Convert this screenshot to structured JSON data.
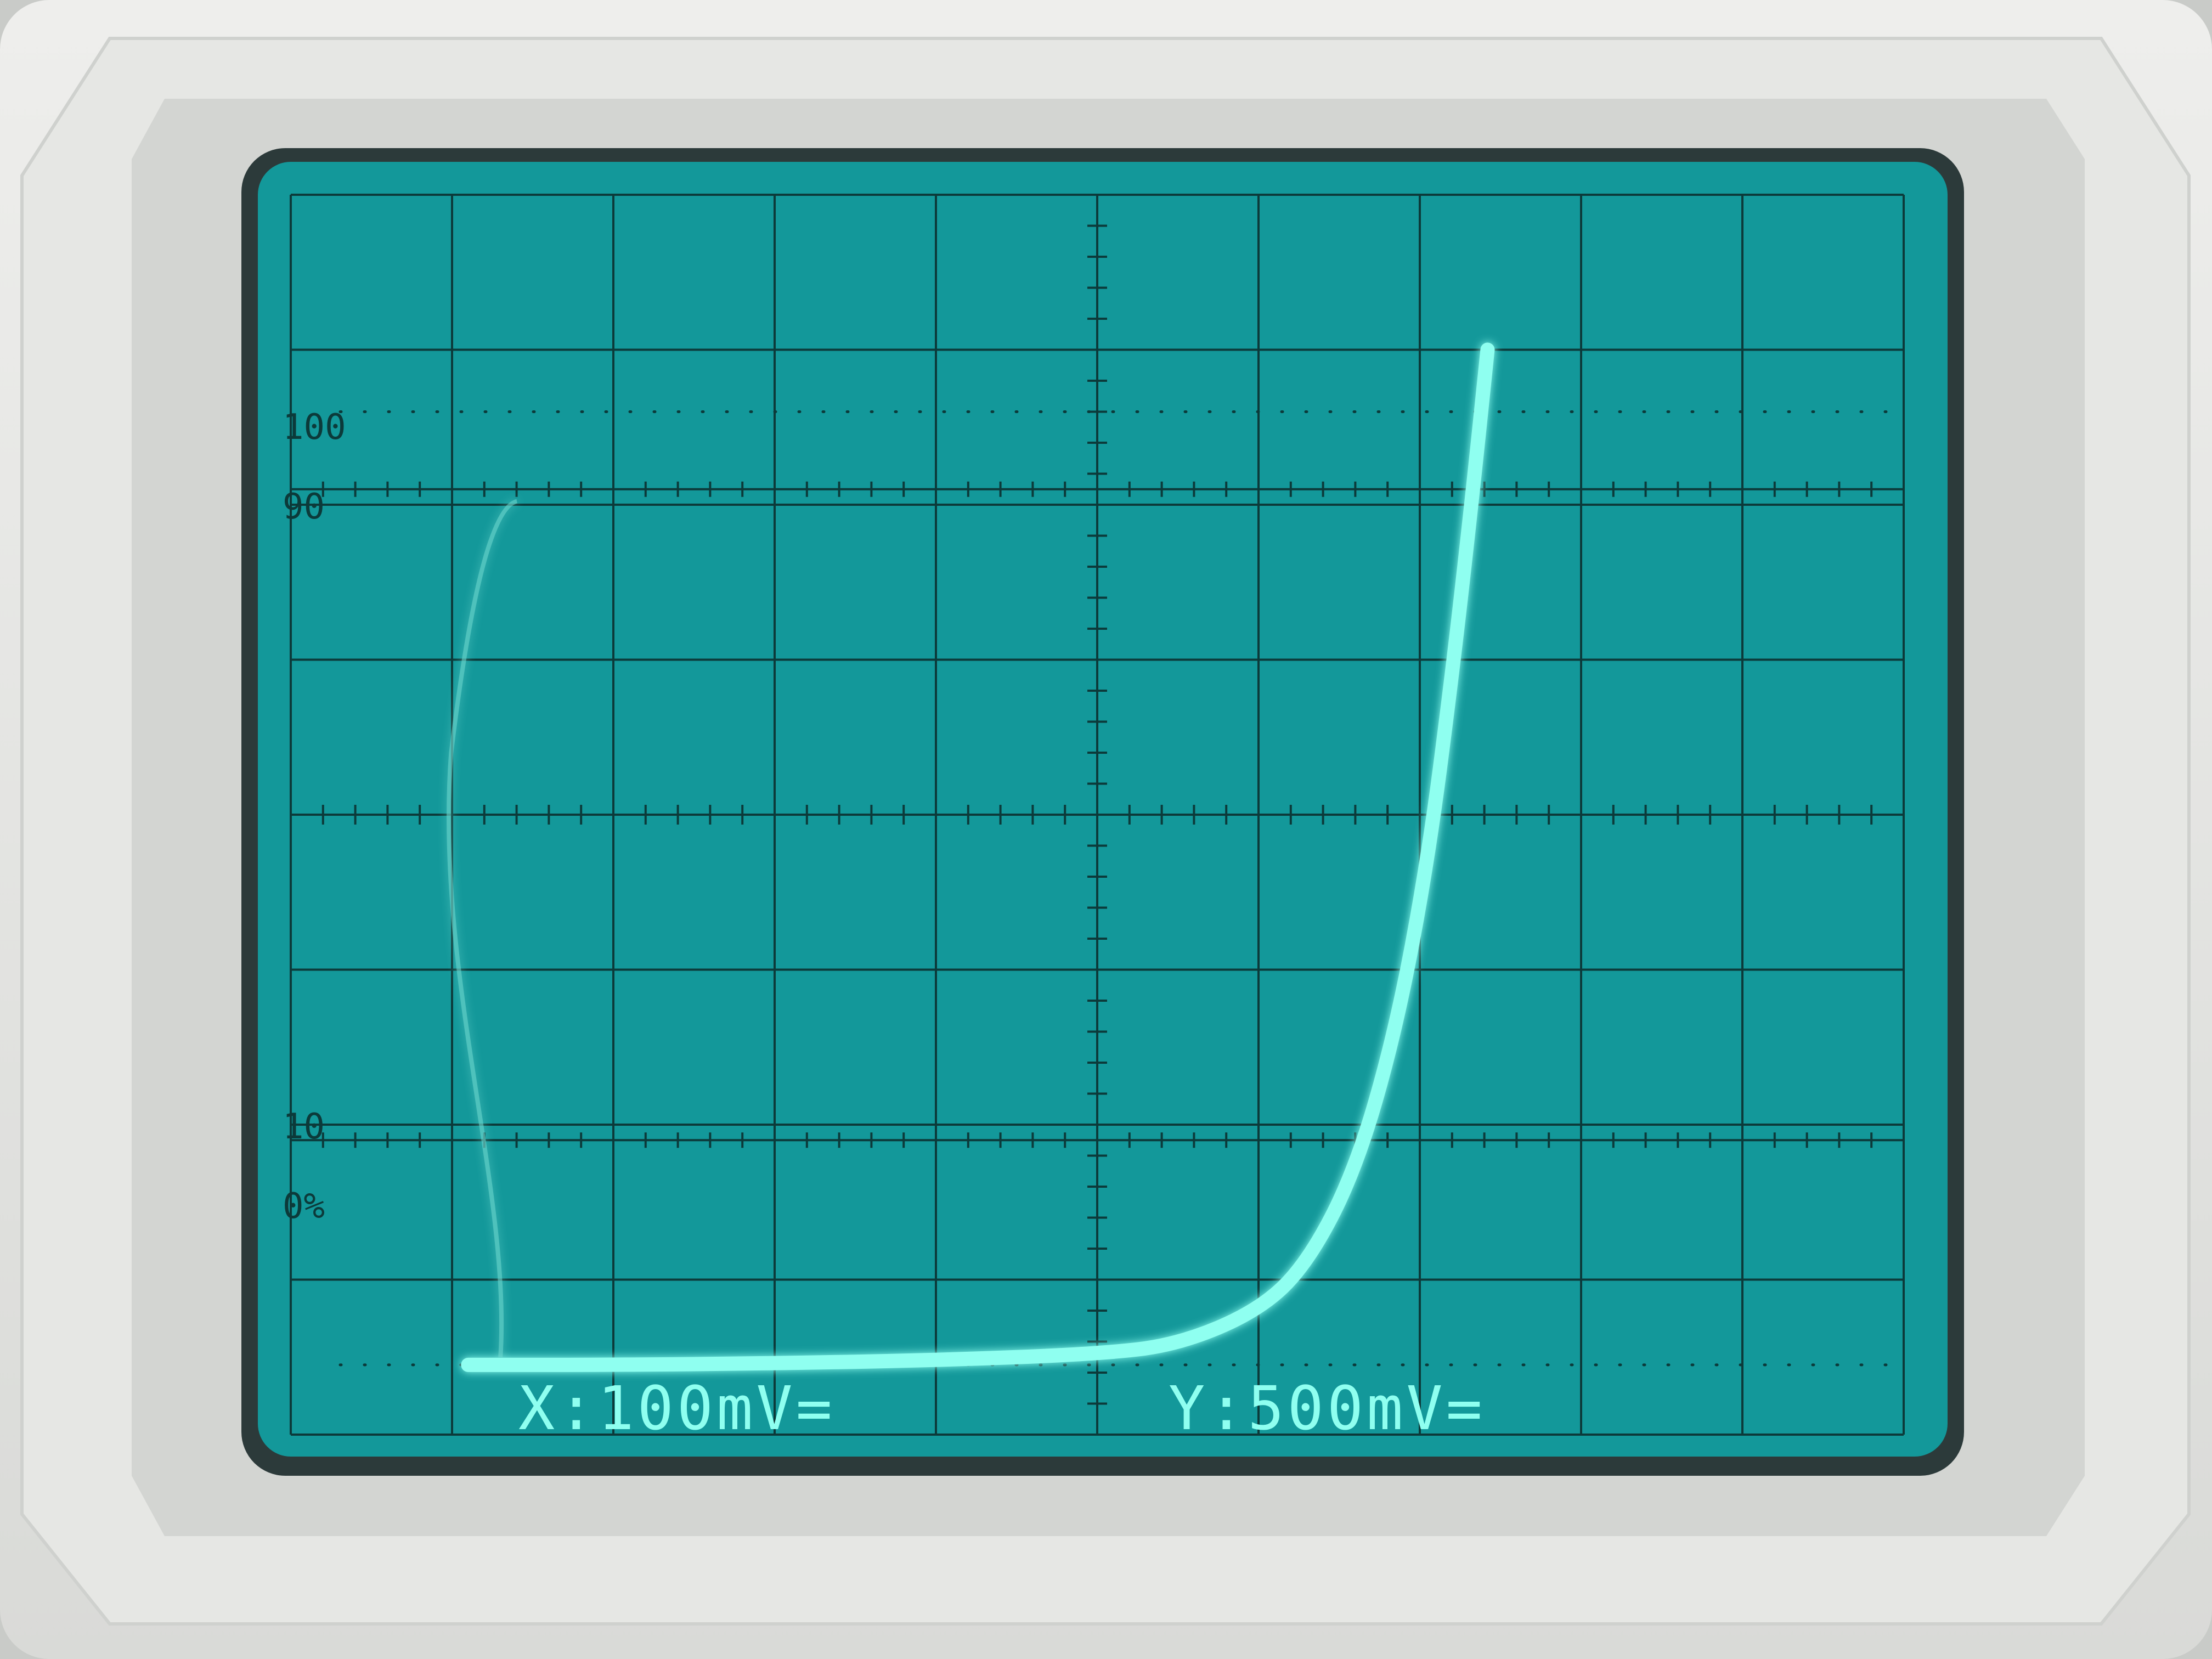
{
  "readout": {
    "x_setting": "X:100mV=",
    "y_setting": "Y:500mV="
  },
  "graticule_labels": {
    "l100": "100",
    "l90": "90",
    "l10": "10",
    "l0": "0%"
  },
  "grid": {
    "columns": 10,
    "rows": 8,
    "minor_ticks_per_division": 5
  },
  "colors": {
    "screen": "#13989a",
    "grid": "#0c3a3a",
    "trace": "#8ffff0",
    "label": "#0c3a3a",
    "bezel": "#e4e5e2",
    "bezel_inner": "#d2d4d1"
  },
  "chart_data": {
    "type": "line",
    "title": "",
    "xlabel": "",
    "ylabel": "",
    "x_divisions": [
      0,
      10
    ],
    "y_divisions": [
      0,
      8
    ],
    "series": [
      {
        "points": [
          [
            1.1,
            0.45
          ],
          [
            2.0,
            0.45
          ],
          [
            3.0,
            0.46
          ],
          [
            4.0,
            0.48
          ],
          [
            5.0,
            0.52
          ],
          [
            5.5,
            0.58
          ],
          [
            6.0,
            0.8
          ],
          [
            6.3,
            1.1
          ],
          [
            6.6,
            1.7
          ],
          [
            6.85,
            2.6
          ],
          [
            7.05,
            3.7
          ],
          [
            7.2,
            4.9
          ],
          [
            7.32,
            6.0
          ],
          [
            7.42,
            7.0
          ]
        ]
      }
    ]
  }
}
